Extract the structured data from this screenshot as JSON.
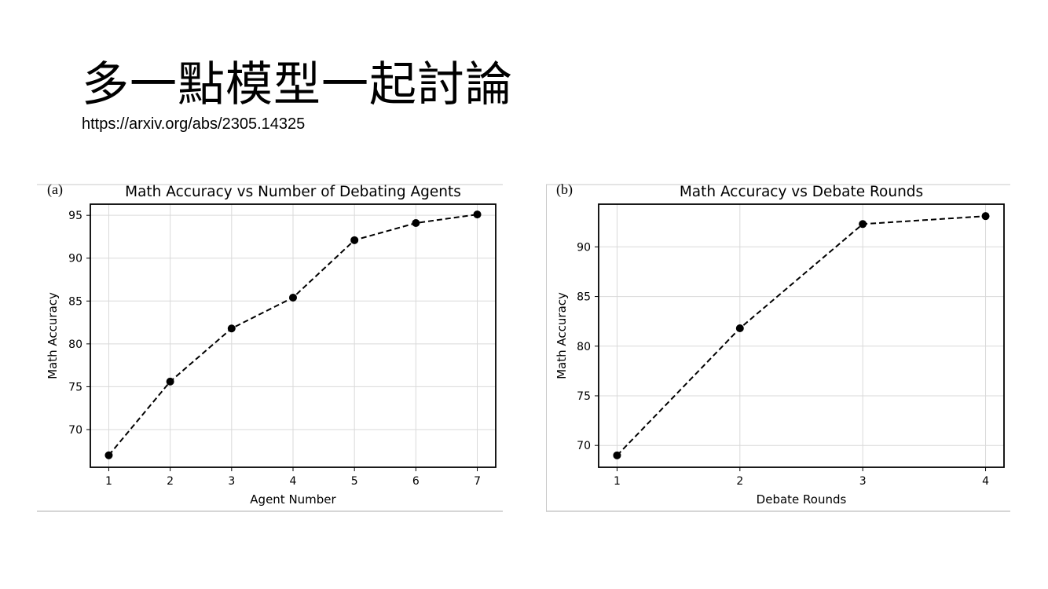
{
  "slide": {
    "title": "多一點模型一起討論",
    "url": "https://arxiv.org/abs/2305.14325"
  },
  "colors": {
    "line": "#000000",
    "grid": "#d9d9d9",
    "divider": "#c8c8c8"
  },
  "chart_data": [
    {
      "type": "line",
      "panel_label": "(a)",
      "title": "Math Accuracy vs Number of Debating Agents",
      "xlabel": "Agent Number",
      "ylabel": "Math Accuracy",
      "x": [
        1,
        2,
        3,
        4,
        5,
        6,
        7
      ],
      "y": [
        67.0,
        75.6,
        81.8,
        85.4,
        92.1,
        94.1,
        95.1
      ],
      "xticks": [
        1,
        2,
        3,
        4,
        5,
        6,
        7
      ],
      "yticks": [
        70,
        75,
        80,
        85,
        90,
        95
      ],
      "xlim": [
        0.7,
        7.3
      ],
      "ylim": [
        65.6,
        96.3
      ],
      "line_style": "dashed",
      "marker": "circle",
      "grid": true
    },
    {
      "type": "line",
      "panel_label": "(b)",
      "title": "Math Accuracy vs Debate Rounds",
      "xlabel": "Debate Rounds",
      "ylabel": "Math Accuracy",
      "x": [
        1,
        2,
        3,
        4
      ],
      "y": [
        69.0,
        81.8,
        92.3,
        93.1
      ],
      "xticks": [
        1,
        2,
        3,
        4
      ],
      "yticks": [
        70,
        75,
        80,
        85,
        90
      ],
      "xlim": [
        0.85,
        4.15
      ],
      "ylim": [
        67.8,
        94.3
      ],
      "line_style": "dashed",
      "marker": "circle",
      "grid": true
    }
  ]
}
